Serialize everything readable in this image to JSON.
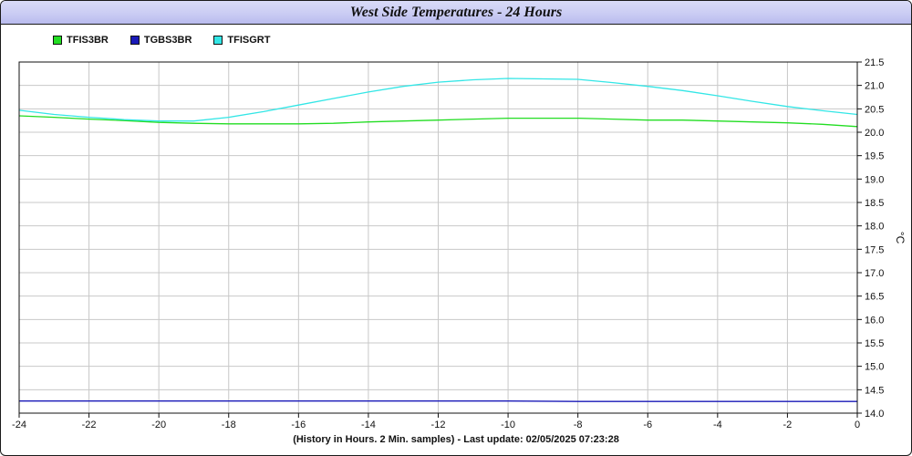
{
  "chart_data": {
    "type": "line",
    "title": "West Side Temperatures - 24 Hours",
    "xlabel": "(History in Hours. 2 Min. samples) - Last update: 02/05/2025 07:23:28",
    "ylabel": "°C",
    "xlim": [
      -24,
      0
    ],
    "ylim": [
      14.0,
      21.5
    ],
    "x_ticks": [
      -24,
      -22,
      -20,
      -18,
      -16,
      -14,
      -12,
      -10,
      -8,
      -6,
      -4,
      -2,
      0
    ],
    "y_ticks": [
      14.0,
      14.5,
      15.0,
      15.5,
      16.0,
      16.5,
      17.0,
      17.5,
      18.0,
      18.5,
      19.0,
      19.5,
      20.0,
      20.5,
      21.0,
      21.5
    ],
    "y_axis_side": "right",
    "grid": true,
    "legend_position": "top-left",
    "series": [
      {
        "name": "TFIS3BR",
        "color": "#22dd22",
        "x": [
          -24,
          -23,
          -22,
          -21,
          -20,
          -19,
          -18,
          -17,
          -16,
          -15,
          -14,
          -13,
          -12,
          -11,
          -10,
          -9,
          -8,
          -7,
          -6,
          -5,
          -4,
          -3,
          -2,
          -1,
          0
        ],
        "y": [
          20.35,
          20.32,
          20.28,
          20.25,
          20.21,
          20.19,
          20.18,
          20.18,
          20.18,
          20.19,
          20.22,
          20.24,
          20.26,
          20.28,
          20.3,
          20.3,
          20.3,
          20.28,
          20.26,
          20.26,
          20.24,
          20.22,
          20.2,
          20.17,
          20.12
        ]
      },
      {
        "name": "TGBS3BR",
        "color": "#1a1ab8",
        "x": [
          -24,
          -22,
          -20,
          -18,
          -16,
          -14,
          -12,
          -10,
          -8,
          -6,
          -4,
          -2,
          0
        ],
        "y": [
          14.26,
          14.26,
          14.26,
          14.26,
          14.26,
          14.26,
          14.26,
          14.26,
          14.25,
          14.25,
          14.25,
          14.25,
          14.25
        ]
      },
      {
        "name": "TFISGRT",
        "color": "#33e6e6",
        "x": [
          -24,
          -23,
          -22,
          -21,
          -20,
          -19,
          -18,
          -17,
          -16,
          -15,
          -14,
          -13,
          -12,
          -11,
          -10,
          -9,
          -8,
          -7,
          -6,
          -5,
          -4,
          -3,
          -2,
          -1,
          0
        ],
        "y": [
          20.47,
          20.38,
          20.32,
          20.27,
          20.24,
          20.24,
          20.32,
          20.44,
          20.58,
          20.72,
          20.86,
          20.98,
          21.07,
          21.12,
          21.15,
          21.14,
          21.13,
          21.06,
          20.98,
          20.89,
          20.78,
          20.66,
          20.55,
          20.46,
          20.38
        ]
      }
    ]
  }
}
